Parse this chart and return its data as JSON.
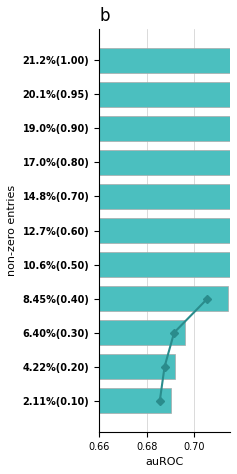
{
  "title": "b",
  "ylabel": "non-zero entries",
  "xlabel": "auROC",
  "xlim": [
    0.66,
    0.715
  ],
  "xticks": [
    0.66,
    0.68,
    0.7
  ],
  "xtick_labels": [
    "0.66",
    "0.68",
    "0.70"
  ],
  "ytick_labels": [
    "2.11%(0.10)",
    "4.22%(0.20)",
    "6.40%(0.30)",
    "8.45%(0.40)",
    "10.6%(0.50)",
    "12.7%(0.60)",
    "14.8%(0.70)",
    "17.0%(0.80)",
    "19.0%(0.90)",
    "20.1%(0.95)",
    "21.2%(1.00)"
  ],
  "bar_values": [
    0.69,
    0.692,
    0.696,
    0.714,
    0.715,
    0.715,
    0.715,
    0.715,
    0.715,
    0.715,
    0.715
  ],
  "line_indices": [
    0,
    1,
    2,
    3
  ],
  "line_auROC": [
    0.6855,
    0.6875,
    0.6915,
    0.7055
  ],
  "bar_color": "#4BBFBF",
  "line_color": "#2A8C8C",
  "bar_edgecolor": "#aaaaaa",
  "background_color": "#ffffff",
  "figsize": [
    2.37,
    4.74
  ],
  "title_fontsize": 12,
  "label_fontsize": 8,
  "tick_fontsize": 7
}
